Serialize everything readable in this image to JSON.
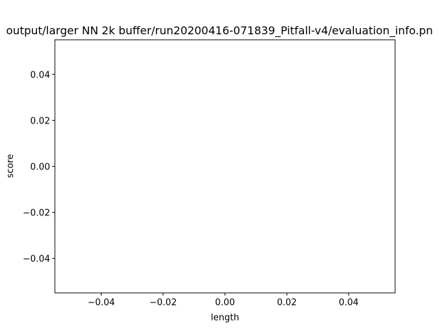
{
  "chart_data": {
    "type": "scatter",
    "title": "output/larger NN 2k buffer/run20200416-071839_Pitfall-v4/evaluation_info.pn",
    "xlabel": "length",
    "ylabel": "score",
    "xlim": [
      -0.055,
      0.055
    ],
    "ylim": [
      -0.055,
      0.055
    ],
    "x_ticks": [
      -0.04,
      -0.02,
      0.0,
      0.02,
      0.04
    ],
    "x_tick_labels": [
      "−0.04",
      "−0.02",
      "0.00",
      "0.02",
      "0.04"
    ],
    "y_ticks": [
      -0.04,
      -0.02,
      0.0,
      0.02,
      0.04
    ],
    "y_tick_labels": [
      "−0.04",
      "−0.02",
      "0.00",
      "0.02",
      "0.04"
    ],
    "points": [],
    "grid": false,
    "legend": "none"
  }
}
